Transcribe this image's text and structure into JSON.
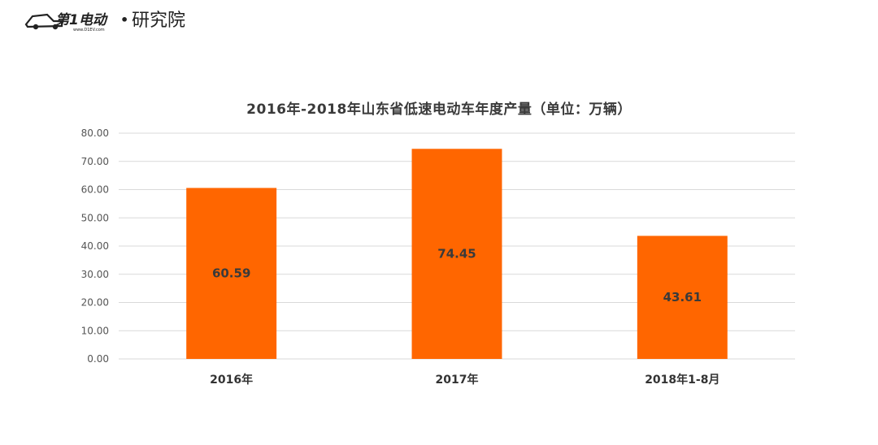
{
  "logo": {
    "mark": "第1电动",
    "url": "www.D1EV.com",
    "separator": "•",
    "label": "研究院"
  },
  "colors": {
    "bar": "#ff6600",
    "grid": "#d9d9d9"
  },
  "chart_data": {
    "type": "bar",
    "title": "2016年-2018年山东省低速电动车年度产量（单位：万辆）",
    "categories": [
      "2016年",
      "2017年",
      "2018年1-8月"
    ],
    "values": [
      60.59,
      74.45,
      43.61
    ],
    "value_labels": [
      "60.59",
      "74.45",
      "43.61"
    ],
    "ylim": [
      0,
      80
    ],
    "yticks": [
      "0.00",
      "10.00",
      "20.00",
      "30.00",
      "40.00",
      "50.00",
      "60.00",
      "70.00",
      "80.00"
    ],
    "grid": true,
    "legend": "none"
  }
}
